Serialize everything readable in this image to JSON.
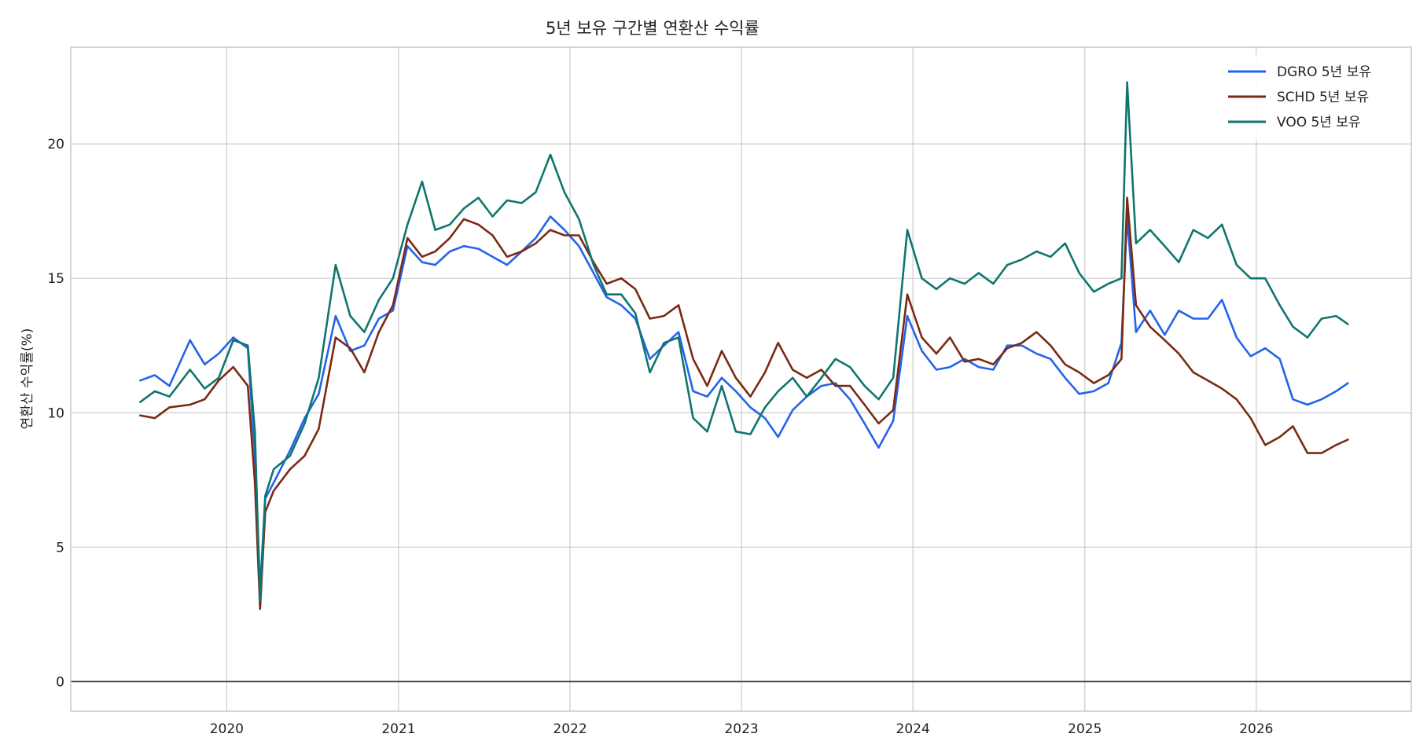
{
  "chart_data": {
    "type": "line",
    "title": "5년 보유 구간별 연환산 수익률",
    "ylabel": "연환산 수익률(%)",
    "xlabel": "",
    "ylim": [
      -1.1,
      23.6
    ],
    "xlim": [
      "2019-02-03",
      "2026-11-27"
    ],
    "x_ticks": [
      "2020",
      "2021",
      "2022",
      "2023",
      "2024",
      "2025",
      "2026"
    ],
    "y_ticks": [
      0,
      5,
      10,
      15,
      20
    ],
    "grid": true,
    "reference_line": 0,
    "legend_position": "top-right",
    "series": [
      {
        "name": "DGRO 5년 보유",
        "color": "#2563eb",
        "x": [
          "2019-07-01",
          "2019-08-01",
          "2019-09-01",
          "2019-10-15",
          "2019-11-15",
          "2019-12-15",
          "2020-01-15",
          "2020-02-15",
          "2020-03-01",
          "2020-03-12",
          "2020-03-23",
          "2020-04-10",
          "2020-05-15",
          "2020-06-15",
          "2020-07-15",
          "2020-08-20",
          "2020-09-20",
          "2020-10-20",
          "2020-11-20",
          "2020-12-20",
          "2021-01-20",
          "2021-02-20",
          "2021-03-20",
          "2021-04-20",
          "2021-05-20",
          "2021-06-20",
          "2021-07-20",
          "2021-08-20",
          "2021-09-20",
          "2021-10-20",
          "2021-11-20",
          "2021-12-20",
          "2022-01-20",
          "2022-02-20",
          "2022-03-20",
          "2022-04-20",
          "2022-05-20",
          "2022-06-20",
          "2022-07-20",
          "2022-08-20",
          "2022-09-20",
          "2022-10-20",
          "2022-11-20",
          "2022-12-20",
          "2023-01-20",
          "2023-02-20",
          "2023-03-20",
          "2023-04-20",
          "2023-05-20",
          "2023-06-20",
          "2023-07-20",
          "2023-08-20",
          "2023-09-20",
          "2023-10-20",
          "2023-11-20",
          "2023-12-20",
          "2024-01-20",
          "2024-02-20",
          "2024-03-20",
          "2024-04-20",
          "2024-05-20",
          "2024-06-20",
          "2024-07-20",
          "2024-08-20",
          "2024-09-20",
          "2024-10-20",
          "2024-11-20",
          "2024-12-20",
          "2025-01-20",
          "2025-02-20",
          "2025-03-20",
          "2025-04-01",
          "2025-04-20",
          "2025-05-20",
          "2025-06-20",
          "2025-07-20",
          "2025-08-20",
          "2025-09-20",
          "2025-10-20",
          "2025-11-20",
          "2025-12-20",
          "2026-01-20",
          "2026-02-20",
          "2026-03-20",
          "2026-04-20",
          "2026-05-20",
          "2026-06-20",
          "2026-07-15"
        ],
        "values": [
          11.2,
          11.4,
          11.0,
          12.7,
          11.8,
          12.2,
          12.8,
          12.4,
          8.4,
          3.4,
          6.8,
          7.4,
          8.6,
          9.8,
          10.7,
          13.6,
          12.3,
          12.5,
          13.5,
          13.8,
          16.2,
          15.6,
          15.5,
          16.0,
          16.2,
          16.1,
          15.8,
          15.5,
          16.0,
          16.5,
          17.3,
          16.8,
          16.2,
          15.2,
          14.3,
          14.0,
          13.5,
          12.0,
          12.5,
          13.0,
          10.8,
          10.6,
          11.3,
          10.8,
          10.2,
          9.8,
          9.1,
          10.1,
          10.6,
          11.0,
          11.1,
          10.5,
          9.6,
          8.7,
          9.7,
          13.6,
          12.3,
          11.6,
          11.7,
          12.0,
          11.7,
          11.6,
          12.5,
          12.5,
          12.2,
          12.0,
          11.3,
          10.7,
          10.8,
          11.1,
          12.6,
          17.3,
          13.0,
          13.8,
          12.9,
          13.8,
          13.5,
          13.5,
          14.2,
          12.8,
          12.1,
          12.4,
          12.0,
          10.5,
          10.3,
          10.5,
          10.8,
          11.1
        ]
      },
      {
        "name": "SCHD 5년 보유",
        "color": "#7a2a14",
        "x": [
          "2019-07-01",
          "2019-08-01",
          "2019-09-01",
          "2019-10-15",
          "2019-11-15",
          "2019-12-15",
          "2020-01-15",
          "2020-02-15",
          "2020-03-01",
          "2020-03-12",
          "2020-03-23",
          "2020-04-10",
          "2020-05-15",
          "2020-06-15",
          "2020-07-15",
          "2020-08-20",
          "2020-09-20",
          "2020-10-20",
          "2020-11-20",
          "2020-12-20",
          "2021-01-20",
          "2021-02-20",
          "2021-03-20",
          "2021-04-20",
          "2021-05-20",
          "2021-06-20",
          "2021-07-20",
          "2021-08-20",
          "2021-09-20",
          "2021-10-20",
          "2021-11-20",
          "2021-12-20",
          "2022-01-20",
          "2022-02-20",
          "2022-03-20",
          "2022-04-20",
          "2022-05-20",
          "2022-06-20",
          "2022-07-20",
          "2022-08-20",
          "2022-09-20",
          "2022-10-20",
          "2022-11-20",
          "2022-12-20",
          "2023-01-20",
          "2023-02-20",
          "2023-03-20",
          "2023-04-20",
          "2023-05-20",
          "2023-06-20",
          "2023-07-20",
          "2023-08-20",
          "2023-09-20",
          "2023-10-20",
          "2023-11-20",
          "2023-12-20",
          "2024-01-20",
          "2024-02-20",
          "2024-03-20",
          "2024-04-20",
          "2024-05-20",
          "2024-06-20",
          "2024-07-20",
          "2024-08-20",
          "2024-09-20",
          "2024-10-20",
          "2024-11-20",
          "2024-12-20",
          "2025-01-20",
          "2025-02-20",
          "2025-03-20",
          "2025-04-01",
          "2025-04-20",
          "2025-05-20",
          "2025-06-20",
          "2025-07-20",
          "2025-08-20",
          "2025-09-20",
          "2025-10-20",
          "2025-11-20",
          "2025-12-20",
          "2026-01-20",
          "2026-02-20",
          "2026-03-20",
          "2026-04-20",
          "2026-05-20",
          "2026-06-20",
          "2026-07-15"
        ],
        "values": [
          9.9,
          9.8,
          10.2,
          10.3,
          10.5,
          11.2,
          11.7,
          11.0,
          7.4,
          2.7,
          6.3,
          7.1,
          7.9,
          8.4,
          9.4,
          12.8,
          12.4,
          11.5,
          13.0,
          14.0,
          16.5,
          15.8,
          16.0,
          16.5,
          17.2,
          17.0,
          16.6,
          15.8,
          16.0,
          16.3,
          16.8,
          16.6,
          16.6,
          15.6,
          14.8,
          15.0,
          14.6,
          13.5,
          13.6,
          14.0,
          12.0,
          11.0,
          12.3,
          11.3,
          10.6,
          11.5,
          12.6,
          11.6,
          11.3,
          11.6,
          11.0,
          11.0,
          10.3,
          9.6,
          10.1,
          14.4,
          12.8,
          12.2,
          12.8,
          11.9,
          12.0,
          11.8,
          12.4,
          12.6,
          13.0,
          12.5,
          11.8,
          11.5,
          11.1,
          11.4,
          12.0,
          18.0,
          14.0,
          13.2,
          12.7,
          12.2,
          11.5,
          11.2,
          10.9,
          10.5,
          9.8,
          8.8,
          9.1,
          9.5,
          8.5,
          8.5,
          8.8,
          9.0
        ]
      },
      {
        "name": "VOO 5년 보유",
        "color": "#0f766e",
        "x": [
          "2019-07-01",
          "2019-08-01",
          "2019-09-01",
          "2019-10-15",
          "2019-11-15",
          "2019-12-15",
          "2020-01-15",
          "2020-02-15",
          "2020-03-01",
          "2020-03-12",
          "2020-03-23",
          "2020-04-10",
          "2020-05-15",
          "2020-06-15",
          "2020-07-15",
          "2020-08-20",
          "2020-09-20",
          "2020-10-20",
          "2020-11-20",
          "2020-12-20",
          "2021-01-20",
          "2021-02-20",
          "2021-03-20",
          "2021-04-20",
          "2021-05-20",
          "2021-06-20",
          "2021-07-20",
          "2021-08-20",
          "2021-09-20",
          "2021-10-20",
          "2021-11-20",
          "2021-12-20",
          "2022-01-20",
          "2022-02-20",
          "2022-03-20",
          "2022-04-20",
          "2022-05-20",
          "2022-06-20",
          "2022-07-20",
          "2022-08-20",
          "2022-09-20",
          "2022-10-20",
          "2022-11-20",
          "2022-12-20",
          "2023-01-20",
          "2023-02-20",
          "2023-03-20",
          "2023-04-20",
          "2023-05-20",
          "2023-06-20",
          "2023-07-20",
          "2023-08-20",
          "2023-09-20",
          "2023-10-20",
          "2023-11-20",
          "2023-12-20",
          "2024-01-20",
          "2024-02-20",
          "2024-03-20",
          "2024-04-20",
          "2024-05-20",
          "2024-06-20",
          "2024-07-20",
          "2024-08-20",
          "2024-09-20",
          "2024-10-20",
          "2024-11-20",
          "2024-12-20",
          "2025-01-20",
          "2025-02-20",
          "2025-03-20",
          "2025-04-01",
          "2025-04-20",
          "2025-05-20",
          "2025-06-20",
          "2025-07-20",
          "2025-08-20",
          "2025-09-20",
          "2025-10-20",
          "2025-11-20",
          "2025-12-20",
          "2026-01-20",
          "2026-02-20",
          "2026-03-20",
          "2026-04-20",
          "2026-05-20",
          "2026-06-20",
          "2026-07-15"
        ],
        "values": [
          10.4,
          10.8,
          10.6,
          11.6,
          10.9,
          11.3,
          12.7,
          12.5,
          9.3,
          3.0,
          6.9,
          7.9,
          8.4,
          9.6,
          11.3,
          15.5,
          13.6,
          13.0,
          14.2,
          15.0,
          17.0,
          18.6,
          16.8,
          17.0,
          17.6,
          18.0,
          17.3,
          17.9,
          17.8,
          18.2,
          19.6,
          18.2,
          17.2,
          15.5,
          14.4,
          14.4,
          13.7,
          11.5,
          12.6,
          12.8,
          9.8,
          9.3,
          11.0,
          9.3,
          9.2,
          10.2,
          10.8,
          11.3,
          10.6,
          11.3,
          12.0,
          11.7,
          11.0,
          10.5,
          11.3,
          16.8,
          15.0,
          14.6,
          15.0,
          14.8,
          15.2,
          14.8,
          15.5,
          15.7,
          16.0,
          15.8,
          16.3,
          15.2,
          14.5,
          14.8,
          15.0,
          22.3,
          16.3,
          16.8,
          16.2,
          15.6,
          16.8,
          16.5,
          17.0,
          15.5,
          15.0,
          15.0,
          14.0,
          13.2,
          12.8,
          13.5,
          13.6,
          13.3
        ]
      }
    ]
  }
}
